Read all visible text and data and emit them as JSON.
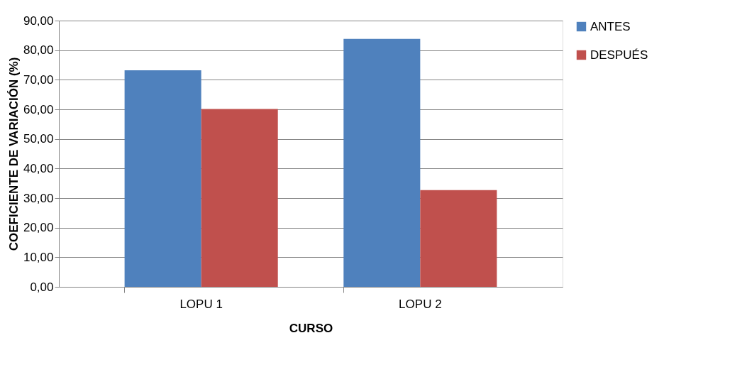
{
  "chart_data": {
    "type": "bar",
    "xlabel": "CURSO",
    "ylabel": "COEFICIENTE DE VARIACIÓN (%)",
    "categories": [
      "LOPU 1",
      "LOPU 2"
    ],
    "series": [
      {
        "name": "ANTES",
        "color": "#4f81bd",
        "values": [
          73.2,
          83.8
        ]
      },
      {
        "name": "DESPUÉS",
        "color": "#c0504d",
        "values": [
          60.1,
          32.7
        ]
      }
    ],
    "ylim": [
      0,
      90
    ],
    "yticks": [
      {
        "value": 0,
        "label": "0,00"
      },
      {
        "value": 10,
        "label": "10,00"
      },
      {
        "value": 20,
        "label": "20,00"
      },
      {
        "value": 30,
        "label": "30,00"
      },
      {
        "value": 40,
        "label": "40,00"
      },
      {
        "value": 50,
        "label": "50,00"
      },
      {
        "value": 60,
        "label": "60,00"
      },
      {
        "value": 70,
        "label": "70,00"
      },
      {
        "value": 80,
        "label": "80,00"
      },
      {
        "value": 90,
        "label": "90,00"
      }
    ],
    "grid": "y",
    "legend": "right"
  }
}
